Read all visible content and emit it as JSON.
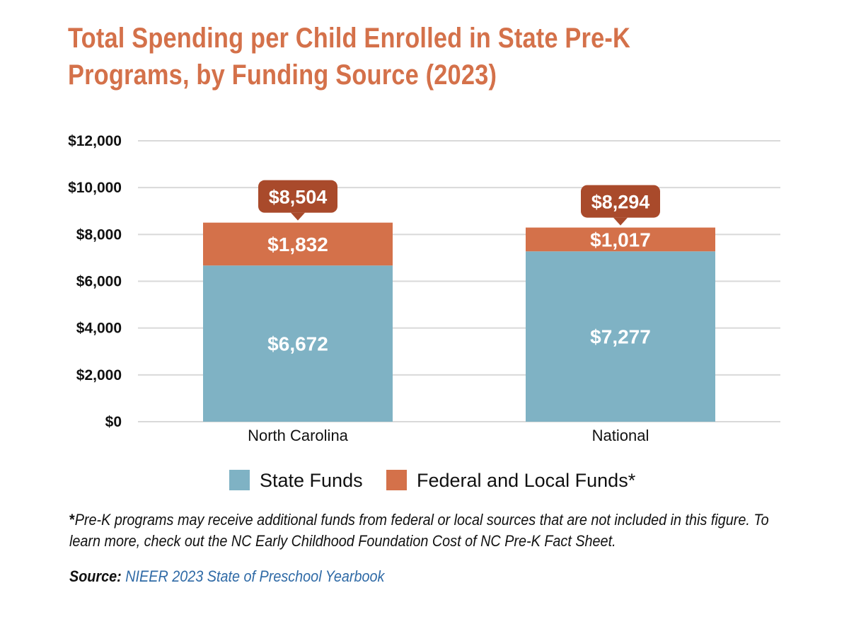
{
  "title_lines": [
    "Total Spending per Child Enrolled in State Pre-K",
    "Programs, by Funding Source (2023)"
  ],
  "colors": {
    "title": "#d4714a",
    "state": "#7fb2c4",
    "federal_local": "#d4714a",
    "callout": "#a94a2b",
    "grid": "#d9d9d9",
    "source_link": "#2f6aa6"
  },
  "chart_data": {
    "type": "bar",
    "stacked": true,
    "categories": [
      "North Carolina",
      "National"
    ],
    "series": [
      {
        "name": "State Funds",
        "values": [
          6672,
          7277
        ],
        "labels": [
          "$6,672",
          "$7,277"
        ]
      },
      {
        "name": "Federal and Local Funds*",
        "values": [
          1832,
          1017
        ],
        "labels": [
          "$1,832",
          "$1,017"
        ]
      }
    ],
    "totals": [
      8504,
      8294
    ],
    "total_labels": [
      "$8,504",
      "$8,294"
    ],
    "y_ticks": [
      0,
      2000,
      4000,
      6000,
      8000,
      10000,
      12000
    ],
    "y_tick_labels": [
      "$0",
      "$2,000",
      "$4,000",
      "$6,000",
      "$8,000",
      "$10,000",
      "$12,000"
    ],
    "ylim": [
      0,
      12000
    ],
    "grid": true,
    "legend_position": "bottom"
  },
  "footnote": {
    "star": "*",
    "text": "Pre-K programs may receive additional funds from federal or local sources that are not included in this figure. To learn more, check out the NC Early Childhood Foundation Cost of NC Pre-K Fact Sheet."
  },
  "source": {
    "label": "Source:",
    "text": "NIEER 2023 State of Preschool Yearbook"
  }
}
